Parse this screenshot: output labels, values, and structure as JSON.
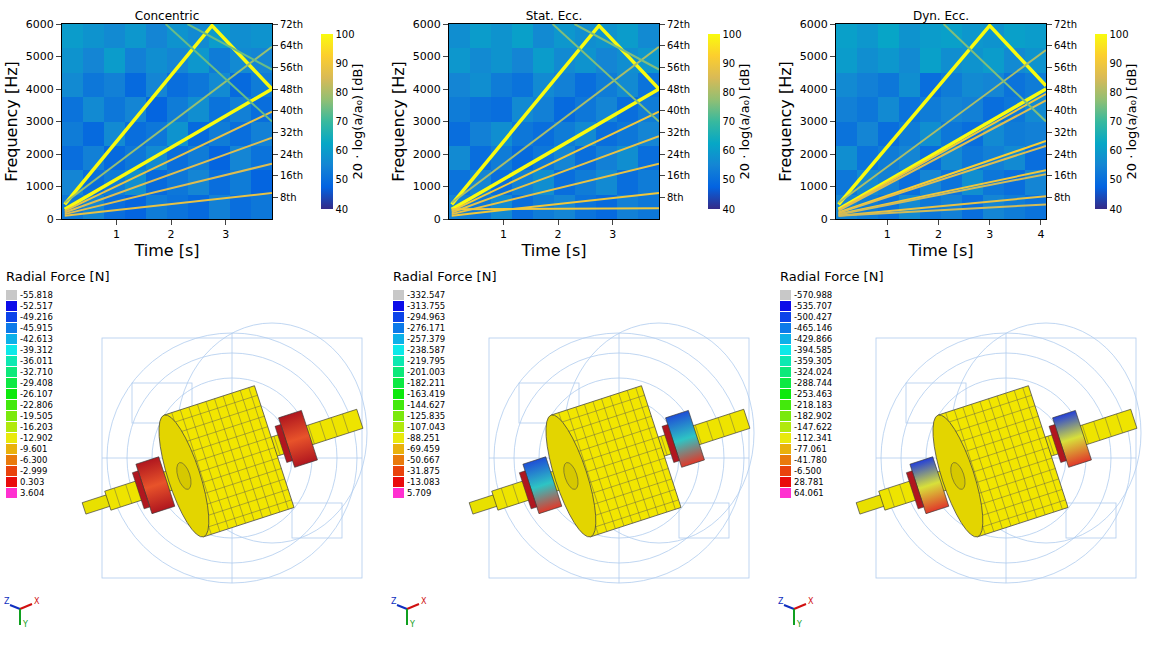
{
  "chart_data": [
    {
      "type": "heatmap",
      "title": "Concentric",
      "x_label": "Time [s]",
      "y_label": "Frequency [Hz]",
      "xlim": [
        0,
        3.85
      ],
      "xticks": [
        1,
        2,
        3
      ],
      "ylim": [
        0,
        6000
      ],
      "yticks": [
        0,
        1000,
        2000,
        3000,
        4000,
        5000,
        6000
      ],
      "y2lim": [
        0,
        72
      ],
      "y2ticks": [
        {
          "value": 8,
          "label": "8th"
        },
        {
          "value": 16,
          "label": "16th"
        },
        {
          "value": 24,
          "label": "24th"
        },
        {
          "value": 32,
          "label": "32th"
        },
        {
          "value": 40,
          "label": "40th"
        },
        {
          "value": 48,
          "label": "48th"
        },
        {
          "value": 56,
          "label": "56th"
        },
        {
          "value": 64,
          "label": "64th"
        },
        {
          "value": 72,
          "label": "72th"
        }
      ],
      "time_bins": [
        0,
        0.385,
        0.77,
        1.155,
        1.54,
        1.925,
        2.31,
        2.695,
        3.08,
        3.465,
        3.85
      ],
      "freq_bins": [
        0,
        750,
        1500,
        2250,
        3000,
        3750,
        4500,
        5250,
        6000
      ],
      "cells": [
        [
          52,
          55,
          50,
          48,
          53,
          51,
          49,
          54,
          50,
          52
        ],
        [
          55,
          50,
          53,
          57,
          49,
          52,
          55,
          50,
          53,
          48
        ],
        [
          50,
          54,
          49,
          52,
          56,
          50,
          53,
          48,
          55,
          51
        ],
        [
          53,
          49,
          56,
          50,
          52,
          58,
          49,
          53,
          50,
          54
        ],
        [
          51,
          56,
          52,
          55,
          48,
          53,
          57,
          51,
          54,
          50
        ],
        [
          56,
          52,
          54,
          49,
          55,
          50,
          52,
          56,
          49,
          53
        ],
        [
          58,
          55,
          60,
          54,
          57,
          55,
          59,
          53,
          56,
          55
        ],
        [
          60,
          58,
          56,
          59,
          55,
          58,
          56,
          60,
          57,
          58
        ]
      ],
      "colorbar": {
        "title": "20 · log(a/a₀) [dB]",
        "range": [
          40,
          100
        ],
        "ticks": [
          40,
          50,
          60,
          70,
          80,
          90,
          100
        ]
      },
      "lines": [
        {
          "x": [
            0.05,
            2.75,
            3.85
          ],
          "y": [
            450,
            5950,
            4000
          ],
          "level": 100
        },
        {
          "x": [
            0.05,
            3.85
          ],
          "y": [
            300,
            4000
          ],
          "level": 100
        },
        {
          "x": [
            0.05,
            3.85
          ],
          "y": [
            250,
            3300
          ],
          "level": 88
        },
        {
          "x": [
            0.05,
            3.85
          ],
          "y": [
            200,
            2500
          ],
          "level": 86
        },
        {
          "x": [
            0.05,
            3.85
          ],
          "y": [
            150,
            1700
          ],
          "level": 86
        },
        {
          "x": [
            0.05,
            3.85
          ],
          "y": [
            100,
            800
          ],
          "level": 88
        },
        {
          "x": [
            0.05,
            3.85
          ],
          "y": [
            500,
            5300
          ],
          "level": 78
        },
        {
          "x": [
            1.9,
            3.85
          ],
          "y": [
            6000,
            3000
          ],
          "level": 74
        },
        {
          "x": [
            2.3,
            3.85
          ],
          "y": [
            6000,
            4600
          ],
          "level": 74
        }
      ]
    },
    {
      "type": "heatmap",
      "title": "Stat. Ecc.",
      "x_label": "Time [s]",
      "y_label": "Frequency [Hz]",
      "xlim": [
        0,
        3.85
      ],
      "xticks": [
        1,
        2,
        3
      ],
      "ylim": [
        0,
        6000
      ],
      "yticks": [
        0,
        1000,
        2000,
        3000,
        4000,
        5000,
        6000
      ],
      "y2lim": [
        0,
        72
      ],
      "y2ticks": [
        {
          "value": 8,
          "label": "8th"
        },
        {
          "value": 16,
          "label": "16th"
        },
        {
          "value": 24,
          "label": "24th"
        },
        {
          "value": 32,
          "label": "32th"
        },
        {
          "value": 40,
          "label": "40th"
        },
        {
          "value": 48,
          "label": "48th"
        },
        {
          "value": 56,
          "label": "56th"
        },
        {
          "value": 64,
          "label": "64th"
        },
        {
          "value": 72,
          "label": "72th"
        }
      ],
      "time_bins": [
        0,
        0.385,
        0.77,
        1.155,
        1.54,
        1.925,
        2.31,
        2.695,
        3.08,
        3.465,
        3.85
      ],
      "freq_bins": [
        0,
        750,
        1500,
        2250,
        3000,
        3750,
        4500,
        5250,
        6000
      ],
      "cells": [
        [
          54,
          52,
          56,
          50,
          53,
          55,
          51,
          49,
          54,
          52
        ],
        [
          51,
          55,
          50,
          54,
          57,
          50,
          53,
          56,
          50,
          53
        ],
        [
          56,
          50,
          53,
          49,
          52,
          55,
          50,
          54,
          57,
          50
        ],
        [
          50,
          54,
          57,
          52,
          50,
          53,
          56,
          50,
          52,
          55
        ],
        [
          53,
          51,
          50,
          56,
          54,
          49,
          52,
          55,
          50,
          53
        ],
        [
          55,
          57,
          53,
          51,
          56,
          54,
          50,
          53,
          56,
          51
        ],
        [
          59,
          56,
          58,
          55,
          60,
          56,
          58,
          55,
          57,
          59
        ],
        [
          57,
          60,
          58,
          61,
          56,
          59,
          57,
          58,
          60,
          56
        ]
      ],
      "colorbar": {
        "title": "20 · log(a/a₀) [dB]",
        "range": [
          40,
          100
        ],
        "ticks": [
          40,
          50,
          60,
          70,
          80,
          90,
          100
        ]
      },
      "lines": [
        {
          "x": [
            0.05,
            2.75,
            3.85
          ],
          "y": [
            450,
            5950,
            4000
          ],
          "level": 100
        },
        {
          "x": [
            0.05,
            3.85
          ],
          "y": [
            300,
            4000
          ],
          "level": 100
        },
        {
          "x": [
            0.05,
            3.85
          ],
          "y": [
            250,
            3300
          ],
          "level": 90
        },
        {
          "x": [
            0.05,
            3.85
          ],
          "y": [
            200,
            2550
          ],
          "level": 88
        },
        {
          "x": [
            0.05,
            3.85
          ],
          "y": [
            150,
            1700
          ],
          "level": 88
        },
        {
          "x": [
            0.05,
            3.85
          ],
          "y": [
            100,
            800
          ],
          "level": 90
        },
        {
          "x": [
            0.05,
            3.85
          ],
          "y": [
            300,
            330
          ],
          "level": 90
        },
        {
          "x": [
            0.05,
            3.85
          ],
          "y": [
            500,
            5300
          ],
          "level": 80
        },
        {
          "x": [
            1.9,
            3.85
          ],
          "y": [
            6000,
            3000
          ],
          "level": 76
        },
        {
          "x": [
            2.3,
            3.85
          ],
          "y": [
            6000,
            4600
          ],
          "level": 76
        }
      ]
    },
    {
      "type": "heatmap",
      "title": "Dyn. Ecc.",
      "x_label": "Time [s]",
      "y_label": "Frequency [Hz]",
      "xlim": [
        0,
        4.1
      ],
      "xticks": [
        1,
        2,
        3,
        4
      ],
      "ylim": [
        0,
        6000
      ],
      "yticks": [
        0,
        1000,
        2000,
        3000,
        4000,
        5000,
        6000
      ],
      "y2lim": [
        0,
        72
      ],
      "y2ticks": [
        {
          "value": 8,
          "label": "8th"
        },
        {
          "value": 16,
          "label": "16th"
        },
        {
          "value": 24,
          "label": "24th"
        },
        {
          "value": 32,
          "label": "32th"
        },
        {
          "value": 40,
          "label": "40th"
        },
        {
          "value": 48,
          "label": "48th"
        },
        {
          "value": 56,
          "label": "56th"
        },
        {
          "value": 64,
          "label": "64th"
        },
        {
          "value": 72,
          "label": "72th"
        }
      ],
      "time_bins": [
        0,
        0.41,
        0.82,
        1.23,
        1.64,
        2.05,
        2.46,
        2.87,
        3.28,
        3.69,
        4.1
      ],
      "freq_bins": [
        0,
        750,
        1500,
        2250,
        3000,
        3750,
        4500,
        5250,
        6000
      ],
      "cells": [
        [
          55,
          53,
          51,
          56,
          52,
          54,
          50,
          55,
          53,
          51
        ],
        [
          52,
          56,
          54,
          50,
          55,
          51,
          57,
          52,
          50,
          55
        ],
        [
          57,
          51,
          53,
          55,
          50,
          56,
          52,
          54,
          56,
          50
        ],
        [
          51,
          55,
          50,
          53,
          57,
          52,
          50,
          56,
          53,
          54
        ],
        [
          54,
          52,
          56,
          51,
          53,
          55,
          54,
          50,
          52,
          56
        ],
        [
          56,
          54,
          52,
          57,
          50,
          53,
          56,
          55,
          51,
          53
        ],
        [
          60,
          57,
          59,
          56,
          61,
          57,
          58,
          60,
          56,
          58
        ],
        [
          61,
          59,
          62,
          58,
          60,
          61,
          59,
          58,
          61,
          60
        ]
      ],
      "colorbar": {
        "title": "20 · log(a/a₀) [dB]",
        "range": [
          40,
          100
        ],
        "ticks": [
          40,
          50,
          60,
          70,
          80,
          90,
          100
        ]
      },
      "lines": [
        {
          "x": [
            0.05,
            3.0,
            4.1
          ],
          "y": [
            450,
            5950,
            4100
          ],
          "level": 100
        },
        {
          "x": [
            0.05,
            4.1
          ],
          "y": [
            300,
            4000
          ],
          "level": 100
        },
        {
          "x": [
            0.05,
            4.1
          ],
          "y": [
            280,
            3850
          ],
          "level": 90
        },
        {
          "x": [
            0.05,
            4.1
          ],
          "y": [
            260,
            3650
          ],
          "level": 86
        },
        {
          "x": [
            0.05,
            4.1
          ],
          "y": [
            200,
            2400
          ],
          "level": 92
        },
        {
          "x": [
            0.05,
            4.1
          ],
          "y": [
            190,
            2250
          ],
          "level": 86
        },
        {
          "x": [
            0.05,
            4.1
          ],
          "y": [
            150,
            1500
          ],
          "level": 90
        },
        {
          "x": [
            0.05,
            4.1
          ],
          "y": [
            140,
            1380
          ],
          "level": 84
        },
        {
          "x": [
            0.05,
            4.1
          ],
          "y": [
            100,
            700
          ],
          "level": 88
        },
        {
          "x": [
            0.05,
            4.1
          ],
          "y": [
            100,
            450
          ],
          "level": 84
        },
        {
          "x": [
            0.05,
            4.1
          ],
          "y": [
            500,
            5200
          ],
          "level": 80
        },
        {
          "x": [
            2.1,
            4.1
          ],
          "y": [
            6000,
            3000
          ],
          "level": 76
        }
      ]
    }
  ],
  "radial_force_panels": [
    {
      "title": "Radial Force [N]",
      "levels": [
        -55.818,
        -52.517,
        -49.216,
        -45.915,
        -42.613,
        -39.312,
        -36.011,
        {
          "value": -32.71,
          "label": "-32.710"
        },
        -29.408,
        -26.107,
        -22.806,
        -19.505,
        -16.203,
        -12.902,
        -9.601,
        {
          "value": -6.3,
          "label": "-6.300"
        },
        -2.999,
        0.303,
        3.604
      ]
    },
    {
      "title": "Radial Force [N]",
      "levels": [
        -332.547,
        -313.755,
        -294.963,
        -276.171,
        -257.379,
        -238.587,
        -219.795,
        -201.003,
        -182.211,
        -163.419,
        -144.627,
        -125.835,
        -107.043,
        -88.251,
        -69.459,
        -50.667,
        -31.875,
        -13.083,
        5.709
      ]
    },
    {
      "title": "Radial Force [N]",
      "levels": [
        -570.988,
        -535.707,
        -500.427,
        -465.146,
        -429.866,
        -394.585,
        -359.305,
        -324.024,
        -288.744,
        -253.463,
        -218.183,
        -182.902,
        -147.622,
        -112.341,
        -77.061,
        {
          "value": -41.78,
          "label": "-41.780"
        },
        {
          "value": -6.5,
          "label": "-6.500"
        },
        28.781,
        64.061
      ]
    }
  ],
  "axes_triad": {
    "x": "X",
    "y": "Y",
    "z": "Z"
  }
}
